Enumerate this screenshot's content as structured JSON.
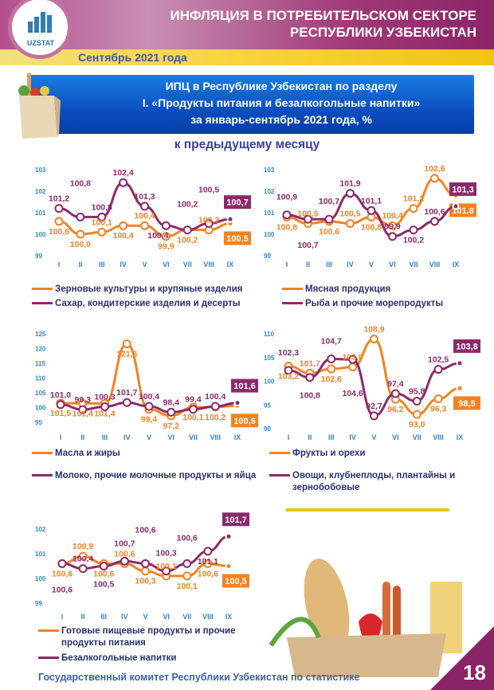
{
  "header": {
    "title_line1": "ИНФЛЯЦИЯ В ПОТРЕБИТЕЛЬСКОМ СЕКТОРЕ",
    "title_line2": "РЕСПУБЛИКИ УЗБЕКИСТАН",
    "period": "Сентябрь 2021 года",
    "logo_text": "UZSTAT"
  },
  "banner": {
    "line1": "ИПЦ в Республике Узбекистан по разделу",
    "line2": "I. «Продукты питания и безалкогольные напитки»",
    "line3": "за январь-сентябрь 2021 года, %"
  },
  "subtitle": "к предыдущему месяцу",
  "colors": {
    "orange": "#f58220",
    "purple": "#8b2a6a",
    "axis": "#2e86c8"
  },
  "chart_data": [
    {
      "type": "line",
      "categories": [
        "I",
        "II",
        "III",
        "IV",
        "V",
        "VI",
        "VII",
        "VIII",
        "IX"
      ],
      "ylim": [
        99,
        103
      ],
      "yticks": [
        "99",
        "100",
        "101",
        "102",
        "103"
      ],
      "series": [
        {
          "name": "Зерновые культуры и крупяные изделия",
          "color": "#f58220",
          "values": [
            100.6,
            100.0,
            100.1,
            100.4,
            100.4,
            99.9,
            100.2,
            100.2,
            100.5
          ],
          "labels": [
            "100,6",
            "100,0",
            "100,1",
            "100,4",
            "100,4",
            "99,9",
            "100,2",
            "100,2",
            "100,5"
          ]
        },
        {
          "name": "Сахар, кондитерские изделия и десерты",
          "color": "#8b2a6a",
          "values": [
            101.2,
            100.8,
            100.8,
            102.4,
            101.3,
            100.4,
            100.2,
            100.5,
            100.7
          ],
          "labels": [
            "101,2",
            "100,8",
            "100,8",
            "102,4",
            "101,3",
            "100,4",
            "100,2",
            "100,5",
            "100,7"
          ]
        }
      ]
    },
    {
      "type": "line",
      "categories": [
        "I",
        "II",
        "III",
        "IV",
        "V",
        "VI",
        "VII",
        "VIII",
        "IX"
      ],
      "ylim": [
        99,
        103
      ],
      "yticks": [
        "99",
        "100",
        "101",
        "102",
        "103"
      ],
      "series": [
        {
          "name": "Мясная продукция",
          "color": "#f58220",
          "values": [
            100.8,
            100.5,
            100.6,
            100.5,
            100.8,
            100.4,
            101.2,
            102.6,
            101.8
          ],
          "labels": [
            "100,8",
            "100,5",
            "100,6",
            "100,5",
            "100,8",
            "100,4",
            "101,2",
            "102,6",
            "101,8"
          ]
        },
        {
          "name": "Рыба и прочие морепродукты",
          "color": "#8b2a6a",
          "values": [
            100.9,
            100.7,
            100.7,
            101.9,
            101.1,
            99.9,
            100.2,
            100.6,
            101.3
          ],
          "labels": [
            "100,9",
            "100,7",
            "100,7",
            "101,9",
            "101,1",
            "99,9",
            "100,2",
            "100,6",
            "101,3"
          ]
        }
      ]
    },
    {
      "type": "line",
      "categories": [
        "I",
        "II",
        "III",
        "IV",
        "V",
        "VI",
        "VII",
        "VIII",
        "IX"
      ],
      "ylim": [
        95,
        125
      ],
      "yticks": [
        "95",
        "100",
        "105",
        "110",
        "115",
        "120",
        "125"
      ],
      "series": [
        {
          "name": "Масла и жиры",
          "color": "#f58220",
          "values": [
            101.5,
            101.4,
            101.4,
            121.6,
            99.4,
            97.2,
            100.1,
            100.2,
            100.6
          ],
          "labels": [
            "101,5",
            "101,4",
            "101,4",
            "121,6",
            "99,4",
            "97,2",
            "100,1",
            "100,2",
            "100,6"
          ]
        },
        {
          "name": "Молоко, прочие молочные продукты и яйца",
          "color": "#8b2a6a",
          "values": [
            101.0,
            99.3,
            100.3,
            101.7,
            100.4,
            98.4,
            99.4,
            100.4,
            101.6
          ],
          "labels": [
            "101,0",
            "99,3",
            "100,3",
            "101,7",
            "100,4",
            "98,4",
            "99,4",
            "100,4",
            "101,6"
          ]
        }
      ]
    },
    {
      "type": "line",
      "categories": [
        "I",
        "II",
        "III",
        "IV",
        "V",
        "VI",
        "VII",
        "VIII",
        "IX"
      ],
      "ylim": [
        90,
        110
      ],
      "yticks": [
        "90",
        "95",
        "100",
        "105",
        "110"
      ],
      "series": [
        {
          "name": "Фрукты и орехи",
          "color": "#f58220",
          "values": [
            103.2,
            101.7,
            102.6,
            103.0,
            108.9,
            96.2,
            93.0,
            96.3,
            98.5
          ],
          "labels": [
            "103,2",
            "101,7",
            "102,6",
            "103,0",
            "108,9",
            "96,2",
            "93,0",
            "96,3",
            "98,5"
          ]
        },
        {
          "name": "Овощи, клубнеплоды, плантайны и зернобобовые",
          "color": "#8b2a6a",
          "values": [
            102.3,
            100.8,
            104.7,
            104.6,
            92.7,
            97.4,
            95.8,
            102.5,
            103.8
          ],
          "labels": [
            "102,3",
            "100,8",
            "104,7",
            "104,6",
            "92,7",
            "97,4",
            "95,8",
            "102,5",
            "103,8"
          ]
        }
      ]
    },
    {
      "type": "line",
      "categories": [
        "I",
        "II",
        "III",
        "IV",
        "V",
        "VI",
        "VII",
        "VIII",
        "IX"
      ],
      "ylim": [
        99,
        102
      ],
      "yticks": [
        "99",
        "100",
        "101",
        "102"
      ],
      "series": [
        {
          "name": "Готовые пищевые продукты и прочие продукты питания",
          "color": "#f58220",
          "values": [
            100.6,
            100.9,
            100.6,
            100.6,
            100.3,
            100.1,
            100.1,
            100.6,
            100.5
          ],
          "labels": [
            "100,6",
            "100,9",
            "100,6",
            "100,6",
            "100,3",
            "100,1",
            "100,1",
            "100,6",
            "100,5"
          ]
        },
        {
          "name": "Безалкогольные напитки",
          "color": "#8b2a6a",
          "values": [
            100.6,
            100.4,
            100.5,
            100.7,
            100.6,
            100.3,
            100.6,
            101.1,
            101.7
          ],
          "labels": [
            "100,6",
            "100,4",
            "100,5",
            "100,7",
            "100,6",
            "100,3",
            "100,6",
            "101,1",
            "101,7"
          ]
        }
      ]
    }
  ],
  "footer": "Государственный комитет Республики Узбекистан по статистике",
  "page_number": "18"
}
